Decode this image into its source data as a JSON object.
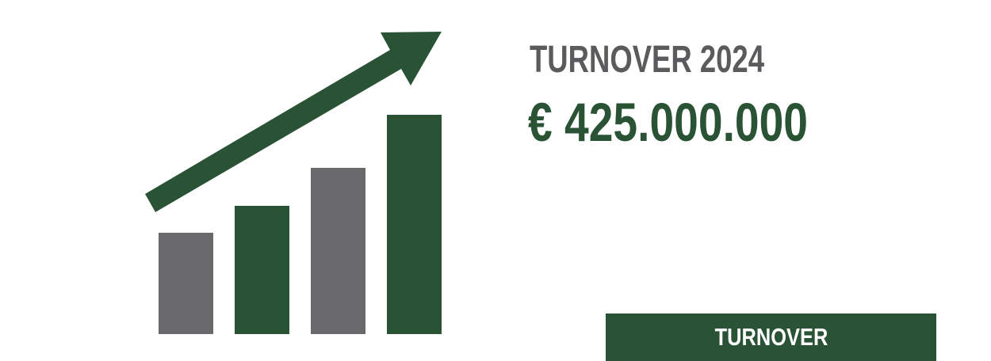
{
  "heading": "TURNOVER 2024",
  "amount": "€ 425.000.000",
  "button_label": "TURNOVER",
  "graphic": {
    "icon": "growth-bar-chart-with-rising-arrow",
    "colors": {
      "green": "#2a5335",
      "gray": "#69696b"
    }
  },
  "colors": {
    "heading": "#5a5b5d",
    "accent": "#2a5335",
    "button_text": "#ffffff"
  }
}
